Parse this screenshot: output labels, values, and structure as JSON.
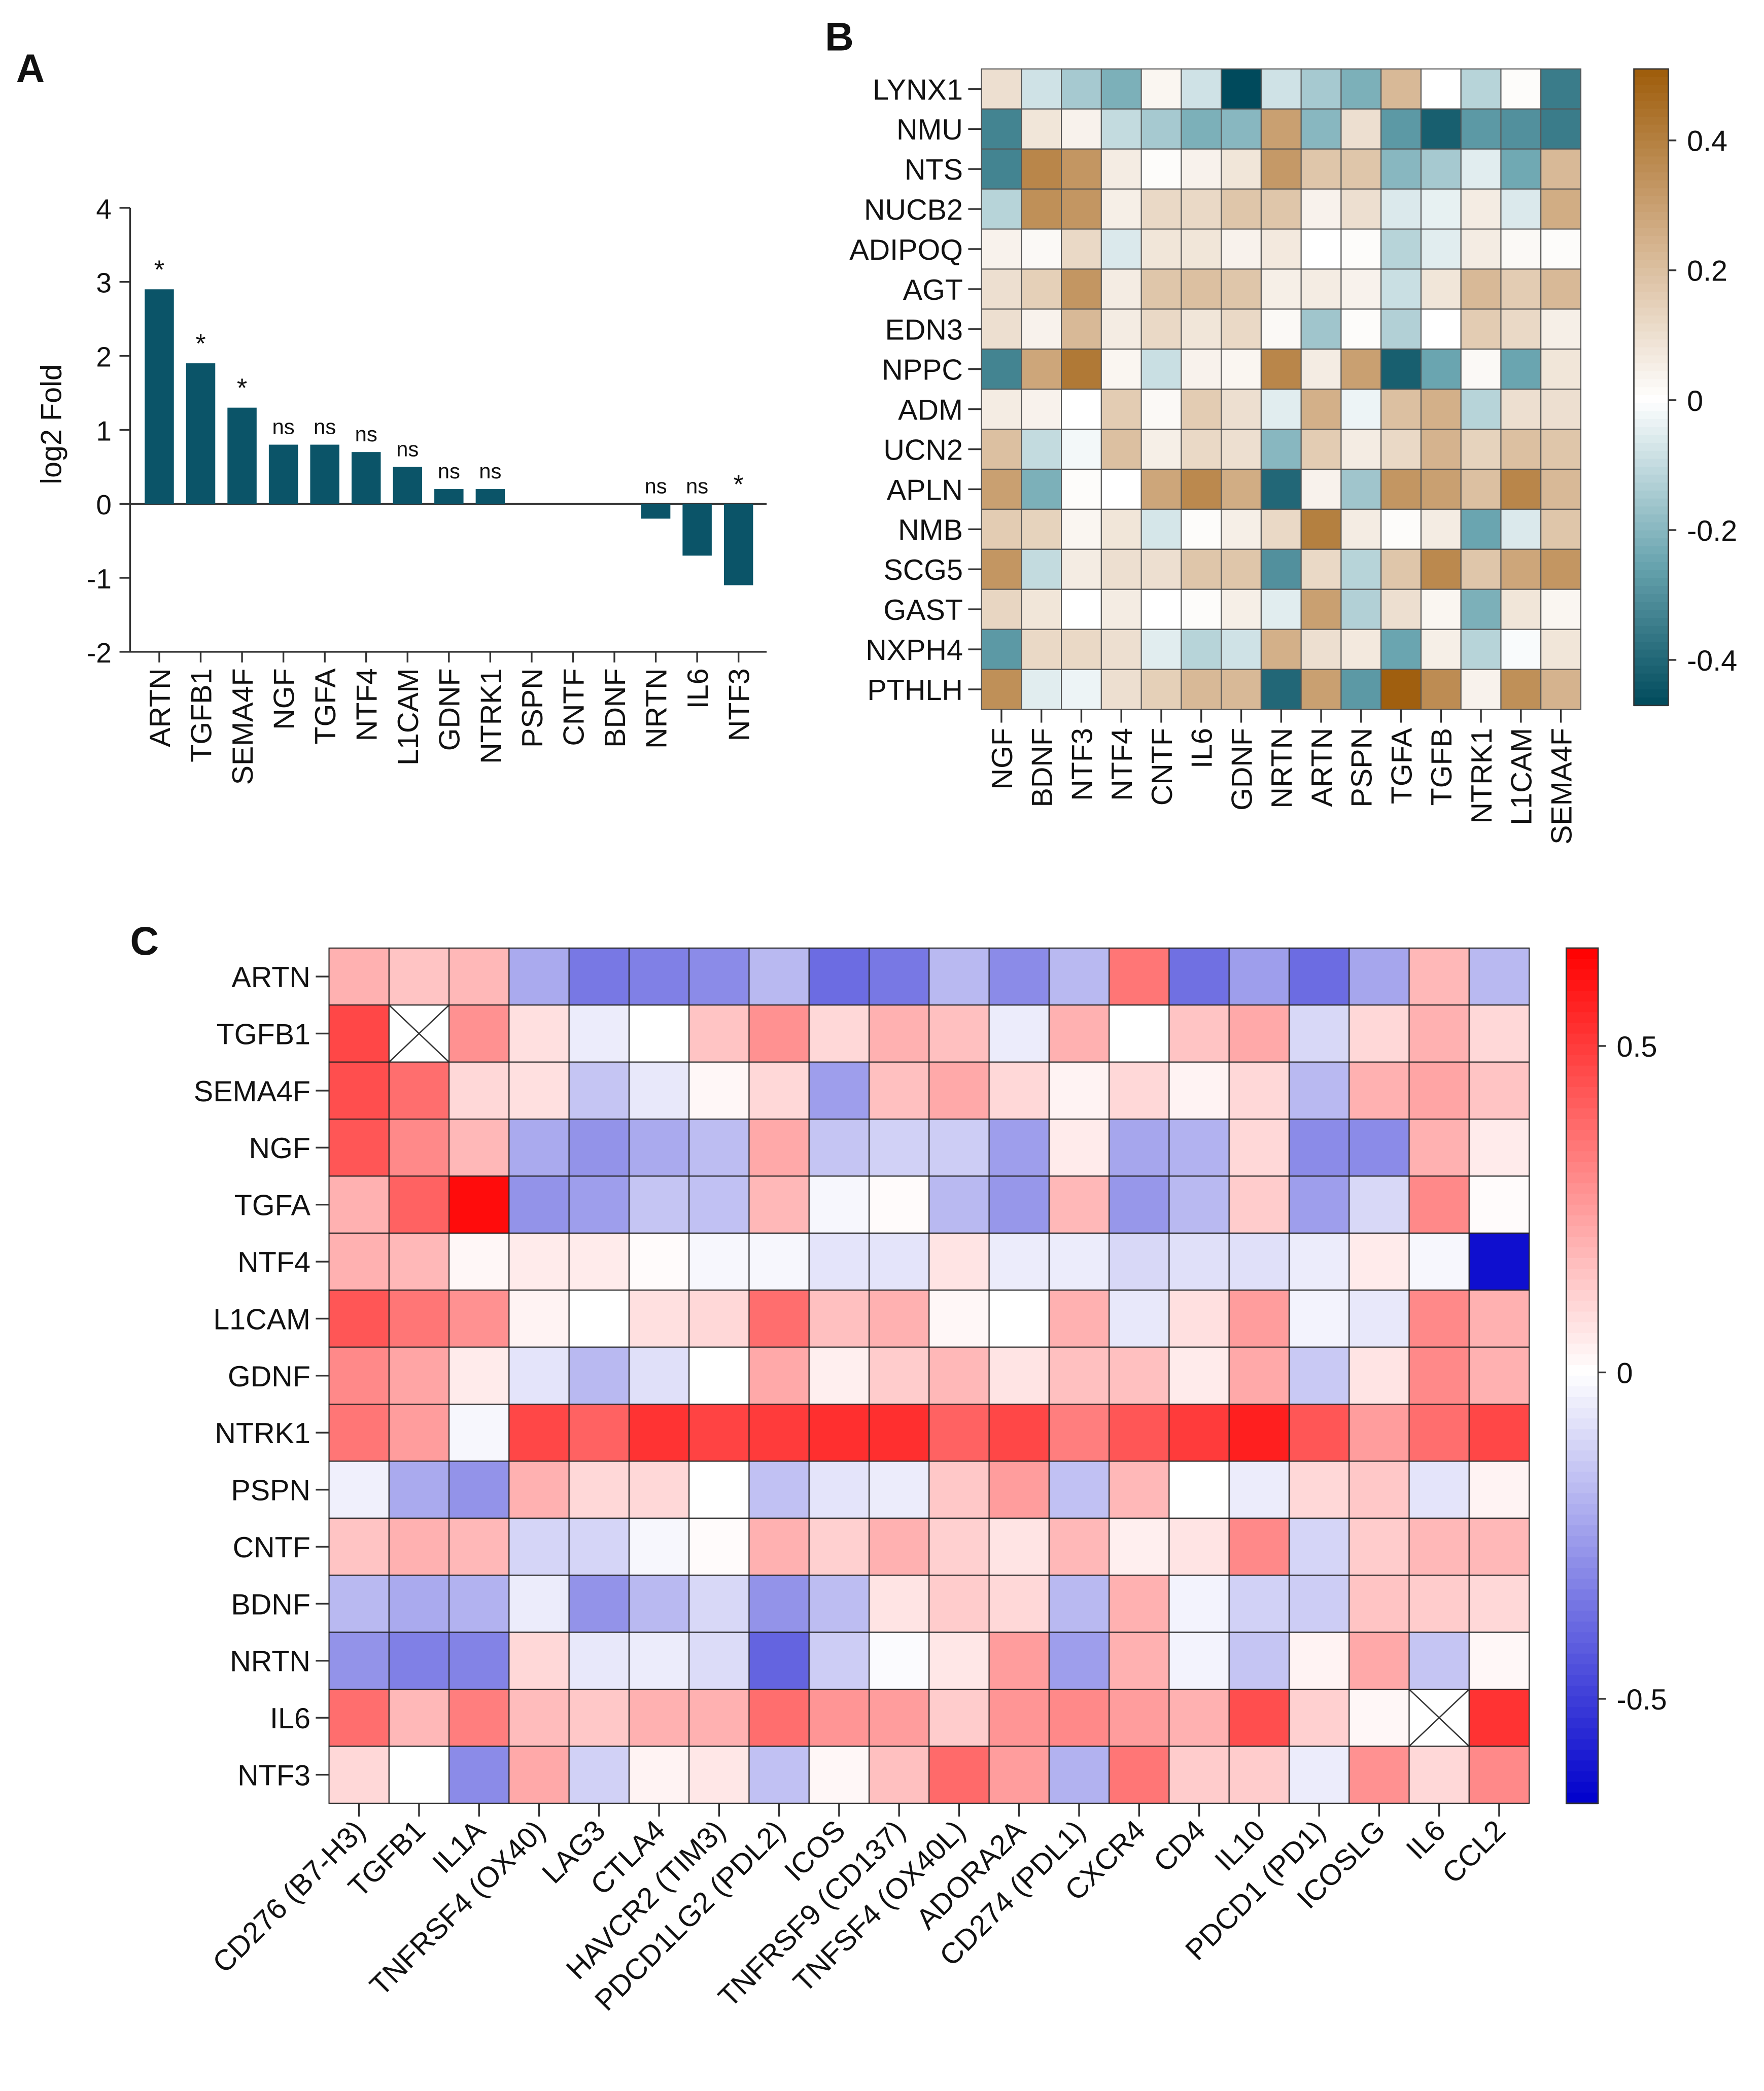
{
  "chart_data": [
    {
      "panel": "A",
      "type": "bar",
      "ylabel": "log2 Fold",
      "xlabel": "",
      "ylim": [
        -2,
        4
      ],
      "yticks": [
        4,
        3,
        2,
        1,
        0,
        -1,
        -2
      ],
      "categories": [
        "ARTN",
        "TGFB1",
        "SEMA4F",
        "NGF",
        "TGFA",
        "NTF4",
        "L1CAM",
        "GDNF",
        "NTRK1",
        "PSPN",
        "CNTF",
        "BDNF",
        "NRTN",
        "IL6",
        "NTF3"
      ],
      "values": [
        2.9,
        1.9,
        1.3,
        0.8,
        0.8,
        0.7,
        0.5,
        0.2,
        0.2,
        0,
        0,
        0,
        -0.2,
        -0.7,
        -1.1
      ],
      "annotations": [
        "*",
        "*",
        "*",
        "ns",
        "ns",
        "ns",
        "ns",
        "ns",
        "ns",
        "",
        "",
        "",
        "ns",
        "ns",
        "*"
      ],
      "color": "#0b5468"
    },
    {
      "panel": "B",
      "type": "heatmap",
      "rows": [
        "LYNX1",
        "NMU",
        "NTS",
        "NUCB2",
        "ADIPOQ",
        "AGT",
        "EDN3",
        "NPPC",
        "ADM",
        "UCN2",
        "APLN",
        "NMB",
        "SCG5",
        "GAST",
        "NXPH4",
        "PTHLH"
      ],
      "columns": [
        "NGF",
        "BDNF",
        "NTF3",
        "NTF4",
        "CNTF",
        "IL6",
        "GDNF",
        "NRTN",
        "ARTN",
        "PSPN",
        "TGFA",
        "TGFB",
        "NTRK1",
        "L1CAM",
        "SEMA4F"
      ],
      "values": [
        [
          0.1,
          -0.08,
          -0.15,
          -0.22,
          0.03,
          -0.08,
          -0.47,
          -0.08,
          -0.15,
          -0.22,
          0.22,
          0,
          -0.12,
          0.01,
          -0.35
        ],
        [
          -0.33,
          0.08,
          0.04,
          -0.1,
          -0.15,
          -0.22,
          -0.2,
          0.3,
          -0.2,
          0.1,
          -0.28,
          -0.42,
          -0.28,
          -0.3,
          -0.35
        ],
        [
          -0.33,
          0.38,
          0.33,
          0.06,
          0.01,
          0.04,
          0.08,
          0.32,
          0.18,
          0.18,
          -0.2,
          -0.15,
          -0.05,
          -0.24,
          0.22
        ],
        [
          -0.12,
          0.35,
          0.33,
          0.05,
          0.12,
          0.12,
          0.18,
          0.18,
          0.04,
          0.1,
          -0.06,
          -0.04,
          0.06,
          -0.06,
          0.26
        ],
        [
          0.04,
          0.02,
          0.12,
          -0.06,
          0.08,
          0.08,
          0.04,
          0.07,
          0,
          0.01,
          -0.12,
          -0.05,
          0.06,
          0.02,
          0.01
        ],
        [
          0.1,
          0.15,
          0.33,
          0.06,
          0.18,
          0.2,
          0.18,
          0.05,
          0.06,
          0.04,
          -0.09,
          0.08,
          0.22,
          0.16,
          0.22
        ],
        [
          0.1,
          0.04,
          0.22,
          0.06,
          0.12,
          0.08,
          0.12,
          0.02,
          -0.16,
          0.01,
          -0.13,
          0,
          0.16,
          0.12,
          0.05
        ],
        [
          -0.33,
          0.28,
          0.42,
          0.03,
          -0.09,
          0.04,
          0.03,
          0.38,
          0.06,
          0.3,
          -0.42,
          -0.25,
          0.02,
          -0.25,
          0.08
        ],
        [
          0.06,
          0.04,
          0,
          0.16,
          0.02,
          0.16,
          0.1,
          -0.05,
          0.25,
          -0.03,
          0.2,
          0.25,
          -0.12,
          0.1,
          0.1
        ],
        [
          0.2,
          -0.1,
          -0.02,
          0.2,
          0.05,
          0.12,
          0.1,
          -0.2,
          0.16,
          0.06,
          0.12,
          0.24,
          0.14,
          0.2,
          0.18
        ],
        [
          0.3,
          -0.22,
          0.01,
          0,
          0.28,
          0.37,
          0.26,
          -0.4,
          0.04,
          -0.16,
          0.33,
          0.3,
          0.2,
          0.38,
          0.22
        ],
        [
          0.16,
          0.14,
          0.03,
          0.08,
          -0.07,
          0.01,
          0.05,
          0.12,
          0.4,
          0.06,
          0.01,
          0.06,
          -0.25,
          -0.06,
          0.18
        ],
        [
          0.33,
          -0.1,
          0.06,
          0.1,
          0.1,
          0.18,
          0.18,
          -0.3,
          0.12,
          -0.12,
          0.18,
          0.37,
          0.18,
          0.28,
          0.33
        ],
        [
          0.13,
          0.08,
          0,
          0.06,
          0,
          0.01,
          0.05,
          -0.05,
          0.3,
          -0.13,
          0.1,
          0.03,
          -0.22,
          0.08,
          0.03
        ],
        [
          -0.28,
          0.12,
          0.12,
          0.1,
          -0.05,
          -0.12,
          -0.08,
          0.25,
          0.1,
          0.07,
          -0.25,
          0.05,
          -0.12,
          -0.01,
          0.08
        ],
        [
          0.35,
          -0.05,
          -0.03,
          0.1,
          0.15,
          0.22,
          0.22,
          -0.4,
          0.3,
          -0.28,
          0.5,
          0.36,
          0.04,
          0.35,
          0.24
        ]
      ],
      "colorbar": {
        "range": [
          -0.47,
          0.51
        ],
        "ticks": [
          "0.4",
          "0.2",
          "0",
          "-0.2",
          "-0.4"
        ],
        "tick_values": [
          0.4,
          0.2,
          0,
          -0.2,
          -0.4
        ],
        "colors": {
          "max": "#9e5c0a",
          "mid_pos": "#d3b089",
          "zero": "#ffffff",
          "mid_neg": "#6aa5b0",
          "min": "#004a5c"
        }
      }
    },
    {
      "panel": "C",
      "type": "heatmap",
      "rows": [
        "ARTN",
        "TGFB1",
        "SEMA4F",
        "NGF",
        "TGFA",
        "NTF4",
        "L1CAM",
        "GDNF",
        "NTRK1",
        "PSPN",
        "CNTF",
        "BDNF",
        "NRTN",
        "IL6",
        "NTF3"
      ],
      "columns": [
        "CD276 (B7-H3)",
        "TGFB1",
        "IL1A",
        "TNFRSF4 (OX40)",
        "LAG3",
        "CTLA4",
        "HAVCR2 (TIM3)",
        "PDCD1LG2 (PDL2)",
        "ICOS",
        "TNFRSF9 (CD137)",
        "TNFSF4 (OX40L)",
        "ADORA2A",
        "CD274 (PDL1)",
        "CXCR4",
        "CD4",
        "IL10",
        "PDCD1 (PD1)",
        "ICOSLG",
        "IL6",
        "CCL2"
      ],
      "values": [
        [
          0.2,
          0.15,
          0.18,
          -0.22,
          -0.35,
          -0.33,
          -0.3,
          -0.18,
          -0.38,
          -0.35,
          -0.18,
          -0.3,
          -0.18,
          0.35,
          -0.37,
          -0.25,
          -0.38,
          -0.23,
          0.18,
          -0.18
        ],
        [
          0.47,
          null,
          0.28,
          0.08,
          -0.05,
          0,
          0.15,
          0.28,
          0.1,
          0.2,
          0.16,
          -0.05,
          0.2,
          0,
          0.15,
          0.22,
          -0.1,
          0.1,
          0.2,
          0.1
        ],
        [
          0.45,
          0.37,
          0.1,
          0.08,
          -0.15,
          -0.06,
          0.02,
          0.1,
          -0.25,
          0.16,
          0.22,
          0.1,
          0.03,
          0.1,
          0.03,
          0.1,
          -0.18,
          0.2,
          0.23,
          0.15
        ],
        [
          0.43,
          0.3,
          0.18,
          -0.22,
          -0.28,
          -0.22,
          -0.17,
          0.22,
          -0.15,
          -0.12,
          -0.13,
          -0.25,
          0.05,
          -0.23,
          -0.2,
          0.1,
          -0.3,
          -0.3,
          0.2,
          0.05
        ],
        [
          0.2,
          0.4,
          0.62,
          -0.28,
          -0.25,
          -0.15,
          -0.16,
          0.18,
          -0.02,
          0.01,
          -0.18,
          -0.27,
          0.18,
          -0.27,
          -0.18,
          0.13,
          -0.25,
          -0.1,
          0.3,
          0.01
        ],
        [
          0.2,
          0.18,
          0.02,
          0.05,
          0.05,
          0.01,
          -0.02,
          -0.02,
          -0.07,
          -0.07,
          0.07,
          -0.05,
          -0.05,
          -0.1,
          -0.08,
          -0.08,
          -0.05,
          0.05,
          -0.02,
          -0.62
        ],
        [
          0.43,
          0.35,
          0.28,
          0.03,
          0,
          0.08,
          0.1,
          0.37,
          0.16,
          0.2,
          0.02,
          0,
          0.2,
          -0.06,
          0.08,
          0.25,
          -0.03,
          -0.06,
          0.3,
          0.2
        ],
        [
          0.3,
          0.23,
          0.05,
          -0.07,
          -0.18,
          -0.08,
          0,
          0.22,
          0.04,
          0.13,
          0.18,
          0.07,
          0.16,
          0.16,
          0.05,
          0.22,
          -0.14,
          0.07,
          0.3,
          0.2
        ],
        [
          0.35,
          0.25,
          -0.02,
          0.47,
          0.4,
          0.52,
          0.48,
          0.5,
          0.53,
          0.53,
          0.4,
          0.47,
          0.33,
          0.43,
          0.5,
          0.57,
          0.43,
          0.25,
          0.37,
          0.47
        ],
        [
          -0.04,
          -0.22,
          -0.28,
          0.2,
          0.1,
          0.1,
          0,
          -0.16,
          -0.07,
          -0.05,
          0.14,
          0.25,
          -0.16,
          0.18,
          0,
          -0.05,
          0.1,
          0.14,
          -0.07,
          0.03
        ],
        [
          0.15,
          0.2,
          0.18,
          -0.11,
          -0.11,
          -0.02,
          0.01,
          0.2,
          0.12,
          0.2,
          0.12,
          0.07,
          0.18,
          0.04,
          0.07,
          0.3,
          -0.11,
          0.13,
          0.18,
          0.18
        ],
        [
          -0.18,
          -0.22,
          -0.2,
          -0.05,
          -0.28,
          -0.18,
          -0.1,
          -0.28,
          -0.17,
          0.07,
          0.13,
          0.1,
          -0.18,
          0.2,
          -0.03,
          -0.12,
          -0.13,
          0.15,
          0.13,
          0.1
        ],
        [
          -0.28,
          -0.33,
          -0.32,
          0.1,
          -0.06,
          -0.05,
          -0.09,
          -0.4,
          -0.13,
          -0.01,
          0.06,
          0.25,
          -0.25,
          0.2,
          -0.03,
          -0.15,
          0.03,
          0.22,
          -0.15,
          0.02
        ],
        [
          0.37,
          0.18,
          0.33,
          0.17,
          0.14,
          0.2,
          0.2,
          0.37,
          0.27,
          0.25,
          0.13,
          0.27,
          0.3,
          0.25,
          0.2,
          0.45,
          0.12,
          0.02,
          null,
          0.52
        ],
        [
          0.1,
          0,
          -0.3,
          0.22,
          -0.12,
          0.03,
          0.06,
          -0.16,
          0.02,
          0.16,
          0.38,
          0.25,
          -0.2,
          0.35,
          0.13,
          0.13,
          -0.05,
          0.28,
          0.1,
          0.3
        ]
      ],
      "missing_marker": "crossed cell",
      "colorbar": {
        "range": [
          -0.66,
          0.65
        ],
        "ticks": [
          "0.5",
          "0",
          "-0.5"
        ],
        "tick_values": [
          0.5,
          0,
          -0.5
        ],
        "colors": {
          "max": "#ff0000",
          "zero": "#ffffff",
          "min": "#0000cc"
        }
      }
    }
  ]
}
